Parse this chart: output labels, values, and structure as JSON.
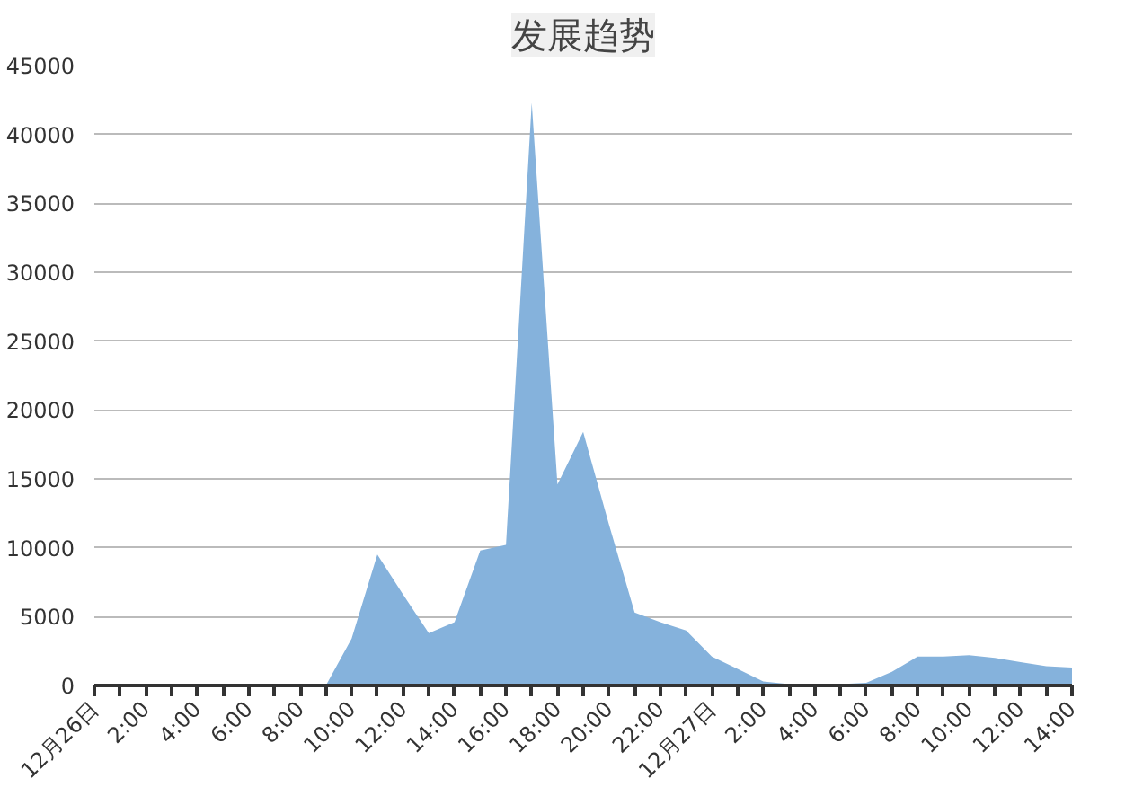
{
  "chart_data": {
    "type": "area",
    "title": "发展趋势",
    "categories": [
      "12月26日",
      null,
      "2:00",
      null,
      "4:00",
      null,
      "6:00",
      null,
      "8:00",
      null,
      "10:00",
      null,
      "12:00",
      null,
      "14:00",
      null,
      "16:00",
      null,
      "18:00",
      null,
      "20:00",
      null,
      "22:00",
      null,
      "12月27日",
      null,
      "2:00",
      null,
      "4:00",
      null,
      "6:00",
      null,
      "8:00",
      null,
      "10:00",
      null,
      "12:00",
      null,
      "14:00"
    ],
    "series": [
      {
        "color": "#85b2dc",
        "values": [
          0,
          0,
          0,
          0,
          0,
          0,
          0,
          0,
          0,
          0,
          3400,
          9500,
          6600,
          3800,
          4600,
          9800,
          10200,
          42300,
          14600,
          18400,
          11700,
          5300,
          4600,
          4000,
          2100,
          1200,
          300,
          100,
          100,
          100,
          200,
          1000,
          2100,
          2100,
          2200,
          2000,
          1700,
          1400,
          1300
        ]
      }
    ],
    "ylim": [
      0,
      45000
    ],
    "yticks": [
      0,
      5000,
      10000,
      15000,
      20000,
      25000,
      30000,
      35000,
      40000,
      45000
    ],
    "grid": "y"
  }
}
